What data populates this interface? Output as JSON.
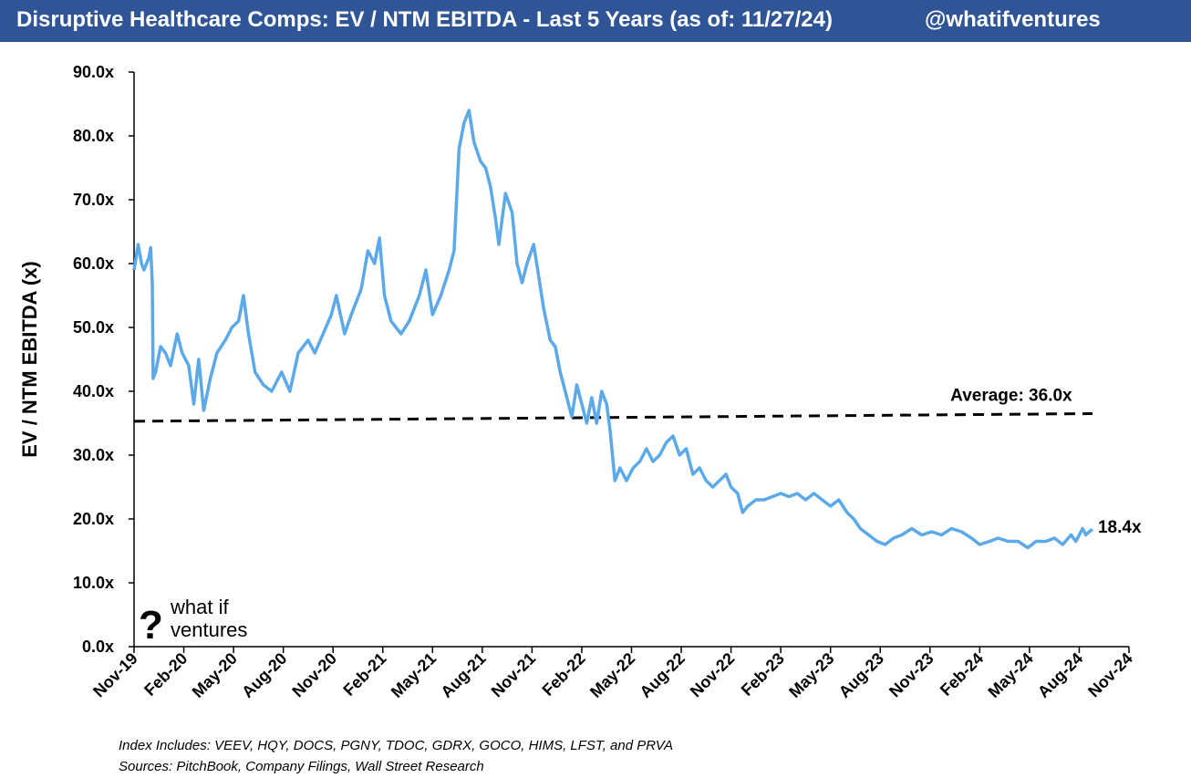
{
  "header": {
    "title": "Disruptive Healthcare Comps: EV / NTM EBITDA - Last 5 Years (as of: 11/27/24)",
    "handle": "@whatifventures",
    "background": "#2F5597"
  },
  "logo": {
    "mark": "?",
    "line1": "what if",
    "line2": "ventures"
  },
  "footnotes": {
    "index": "Index Includes: VEEV, HQY, DOCS, PGNY, TDOC, GDRX, GOCO, HIMS, LFST, and PRVA",
    "sources": "Sources: PitchBook, Company Filings, Wall Street Research"
  },
  "chart_data": {
    "type": "line",
    "title": "Disruptive Healthcare Comps: EV / NTM EBITDA - Last 5 Years (as of: 11/27/24)",
    "ylabel": "EV / NTM EBITDA (x)",
    "xlabel": "",
    "ylim": [
      0,
      90
    ],
    "yticks": [
      0,
      10,
      20,
      30,
      40,
      50,
      60,
      70,
      80,
      90
    ],
    "ytick_labels": [
      "0.0x",
      "10.0x",
      "20.0x",
      "30.0x",
      "40.0x",
      "50.0x",
      "60.0x",
      "70.0x",
      "80.0x",
      "90.0x"
    ],
    "xlim": [
      0,
      60
    ],
    "x_unit": "months since Nov-19",
    "xticks": [
      0,
      3,
      6,
      9,
      12,
      15,
      18,
      21,
      24,
      27,
      30,
      33,
      36,
      39,
      42,
      45,
      48,
      51,
      54,
      57,
      60
    ],
    "xtick_labels": [
      "Nov-19",
      "Feb-20",
      "May-20",
      "Aug-20",
      "Nov-20",
      "Feb-21",
      "May-21",
      "Aug-21",
      "Nov-21",
      "Feb-22",
      "May-22",
      "Aug-22",
      "Nov-22",
      "Feb-23",
      "May-23",
      "Aug-23",
      "Nov-23",
      "Feb-24",
      "May-24",
      "Aug-24",
      "Nov-24"
    ],
    "grid": false,
    "line_color": "#5BA9E8",
    "series": [
      {
        "values": [
          [
            0,
            59
          ],
          [
            0.25,
            63
          ],
          [
            0.45,
            60
          ],
          [
            0.6,
            59
          ],
          [
            0.9,
            61
          ],
          [
            1.0,
            62.5
          ],
          [
            1.1,
            57
          ],
          [
            1.15,
            42
          ],
          [
            1.3,
            43
          ],
          [
            1.6,
            47
          ],
          [
            1.9,
            46
          ],
          [
            2.2,
            44
          ],
          [
            2.6,
            49
          ],
          [
            2.9,
            46
          ],
          [
            3.3,
            44
          ],
          [
            3.6,
            38
          ],
          [
            3.9,
            45
          ],
          [
            4.2,
            37
          ],
          [
            4.6,
            42
          ],
          [
            5.0,
            46
          ],
          [
            5.5,
            48
          ],
          [
            5.9,
            50
          ],
          [
            6.3,
            51
          ],
          [
            6.6,
            55
          ],
          [
            6.9,
            49
          ],
          [
            7.3,
            43
          ],
          [
            7.8,
            41
          ],
          [
            8.3,
            40
          ],
          [
            8.9,
            43
          ],
          [
            9.4,
            40
          ],
          [
            9.9,
            46
          ],
          [
            10.5,
            48
          ],
          [
            10.9,
            46
          ],
          [
            11.4,
            49
          ],
          [
            11.9,
            52
          ],
          [
            12.2,
            55
          ],
          [
            12.7,
            49
          ],
          [
            13.1,
            52
          ],
          [
            13.7,
            56
          ],
          [
            14.1,
            62
          ],
          [
            14.5,
            60
          ],
          [
            14.8,
            64
          ],
          [
            15.1,
            55
          ],
          [
            15.5,
            51
          ],
          [
            16.1,
            49
          ],
          [
            16.6,
            51
          ],
          [
            17.2,
            55
          ],
          [
            17.6,
            59
          ],
          [
            18.0,
            52
          ],
          [
            18.5,
            55
          ],
          [
            19.0,
            59
          ],
          [
            19.3,
            62
          ],
          [
            19.6,
            78
          ],
          [
            19.9,
            82
          ],
          [
            20.2,
            84
          ],
          [
            20.5,
            79
          ],
          [
            20.9,
            76
          ],
          [
            21.2,
            75
          ],
          [
            21.5,
            72
          ],
          [
            21.8,
            67
          ],
          [
            22.0,
            63
          ],
          [
            22.4,
            71
          ],
          [
            22.8,
            68
          ],
          [
            23.1,
            60
          ],
          [
            23.4,
            57
          ],
          [
            23.7,
            60
          ],
          [
            24.1,
            63
          ],
          [
            24.4,
            58
          ],
          [
            24.7,
            53
          ],
          [
            25.1,
            48
          ],
          [
            25.4,
            47
          ],
          [
            25.7,
            43
          ],
          [
            26.0,
            40
          ],
          [
            26.4,
            36
          ],
          [
            26.7,
            41
          ],
          [
            27.0,
            38
          ],
          [
            27.3,
            35
          ],
          [
            27.6,
            39
          ],
          [
            27.9,
            35
          ],
          [
            28.2,
            40
          ],
          [
            28.5,
            38
          ],
          [
            28.7,
            34
          ],
          [
            29.0,
            26
          ],
          [
            29.3,
            28
          ],
          [
            29.7,
            26
          ],
          [
            30.1,
            28
          ],
          [
            30.5,
            29
          ],
          [
            30.9,
            31
          ],
          [
            31.3,
            29
          ],
          [
            31.7,
            30
          ],
          [
            32.1,
            32
          ],
          [
            32.5,
            33
          ],
          [
            32.9,
            30
          ],
          [
            33.3,
            31
          ],
          [
            33.7,
            27
          ],
          [
            34.1,
            28
          ],
          [
            34.5,
            26
          ],
          [
            34.9,
            25
          ],
          [
            35.3,
            26
          ],
          [
            35.7,
            27
          ],
          [
            36.0,
            25
          ],
          [
            36.4,
            24
          ],
          [
            36.7,
            21
          ],
          [
            37.0,
            22
          ],
          [
            37.5,
            23
          ],
          [
            38.0,
            23
          ],
          [
            38.5,
            23.5
          ],
          [
            39.0,
            24
          ],
          [
            39.5,
            23.5
          ],
          [
            40.0,
            24
          ],
          [
            40.5,
            23
          ],
          [
            41.0,
            24
          ],
          [
            41.5,
            23
          ],
          [
            42.0,
            22
          ],
          [
            42.5,
            23
          ],
          [
            43.0,
            21
          ],
          [
            43.4,
            20
          ],
          [
            43.8,
            18.5
          ],
          [
            44.3,
            17.5
          ],
          [
            44.8,
            16.5
          ],
          [
            45.3,
            16
          ],
          [
            45.8,
            17
          ],
          [
            46.3,
            17.5
          ],
          [
            46.9,
            18.5
          ],
          [
            47.5,
            17.5
          ],
          [
            48.1,
            18
          ],
          [
            48.7,
            17.5
          ],
          [
            49.3,
            18.5
          ],
          [
            49.9,
            18
          ],
          [
            50.5,
            17
          ],
          [
            51.0,
            16
          ],
          [
            51.6,
            16.5
          ],
          [
            52.1,
            17
          ],
          [
            52.7,
            16.5
          ],
          [
            53.3,
            16.5
          ],
          [
            53.9,
            15.5
          ],
          [
            54.4,
            16.5
          ],
          [
            55.0,
            16.5
          ],
          [
            55.5,
            17
          ],
          [
            56.0,
            16
          ],
          [
            56.5,
            17.5
          ],
          [
            56.8,
            16.5
          ],
          [
            57.2,
            18.5
          ],
          [
            57.4,
            17.5
          ],
          [
            57.6,
            18
          ],
          [
            57.8,
            18.4
          ]
        ]
      }
    ],
    "average": {
      "value": 36.0,
      "label": "Average: 36.0x",
      "color": "#000000",
      "start": 35.3,
      "end": 36.5
    },
    "end_label": "18.4x"
  }
}
